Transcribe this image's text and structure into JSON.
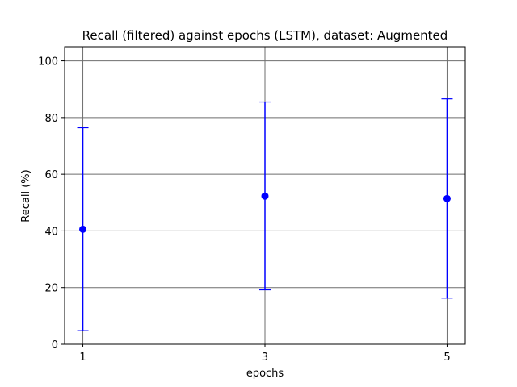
{
  "chart_data": {
    "type": "scatter",
    "title": "Recall (filtered) against epochs (LSTM), dataset: Augmented",
    "xlabel": "epochs",
    "ylabel": "Recall (%)",
    "x_ticks": [
      1,
      3,
      5
    ],
    "y_ticks": [
      0,
      20,
      40,
      60,
      80,
      100
    ],
    "xlim": [
      0.8,
      5.2
    ],
    "ylim": [
      0,
      105
    ],
    "grid": true,
    "color": "#0000ff",
    "series": [
      {
        "x": [
          1,
          3,
          5
        ],
        "y": [
          40.6,
          52.3,
          51.4
        ],
        "error_low": [
          4.8,
          19.2,
          16.3
        ],
        "error_high": [
          76.4,
          85.5,
          86.6
        ]
      }
    ]
  }
}
